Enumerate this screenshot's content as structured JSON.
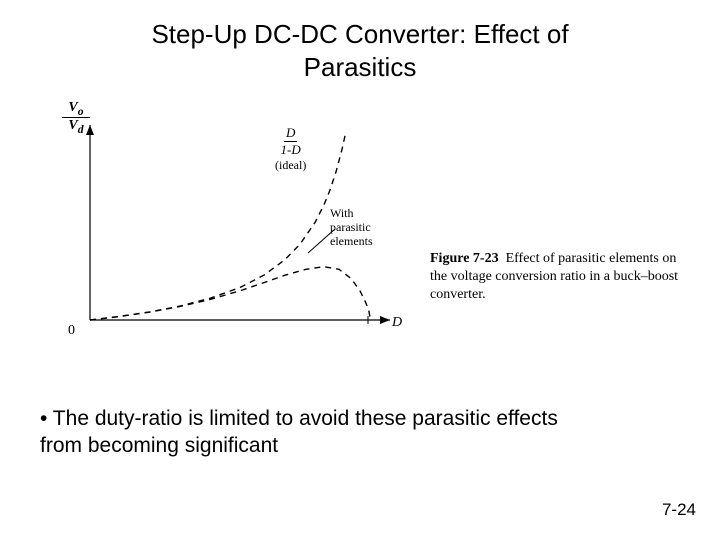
{
  "title_line1": "Step-Up DC-DC Converter: Effect of",
  "title_line2": "Parasitics",
  "chart": {
    "type": "line",
    "background_color": "#ffffff",
    "axis_color": "#000000",
    "line_width_axis": 1.2,
    "line_width_curve": 1.4,
    "dash_pattern": "6,5",
    "xlim": [
      0,
      1
    ],
    "ylim": [
      0,
      6
    ],
    "x_axis": {
      "origin_label": "0",
      "end_label": "D"
    },
    "y_axis": {
      "numerator": "V",
      "numerator_sub": "o",
      "denominator": "V",
      "denominator_sub": "d"
    },
    "curves": {
      "ideal": {
        "label_num": "D",
        "label_den": "1-D",
        "label_note": "(ideal)",
        "points": [
          [
            0.0,
            0.0
          ],
          [
            0.1,
            0.111
          ],
          [
            0.2,
            0.25
          ],
          [
            0.3,
            0.429
          ],
          [
            0.4,
            0.667
          ],
          [
            0.5,
            1.0
          ],
          [
            0.58,
            1.381
          ],
          [
            0.65,
            1.857
          ],
          [
            0.7,
            2.333
          ],
          [
            0.75,
            3.0
          ],
          [
            0.78,
            3.545
          ],
          [
            0.8,
            4.0
          ],
          [
            0.82,
            4.556
          ],
          [
            0.84,
            5.25
          ],
          [
            0.85,
            5.667
          ]
        ]
      },
      "parasitic": {
        "label_line1": "With",
        "label_line2": "parasitic",
        "label_line3": "elements",
        "points": [
          [
            0.0,
            0.0
          ],
          [
            0.1,
            0.11
          ],
          [
            0.2,
            0.245
          ],
          [
            0.3,
            0.415
          ],
          [
            0.4,
            0.63
          ],
          [
            0.5,
            0.9
          ],
          [
            0.58,
            1.15
          ],
          [
            0.65,
            1.38
          ],
          [
            0.72,
            1.56
          ],
          [
            0.78,
            1.64
          ],
          [
            0.83,
            1.56
          ],
          [
            0.87,
            1.28
          ],
          [
            0.9,
            0.9
          ],
          [
            0.92,
            0.52
          ],
          [
            0.93,
            0.26
          ],
          [
            0.935,
            0.0
          ]
        ]
      }
    }
  },
  "caption_bold": "Figure 7-23",
  "caption_rest": "Effect of parasitic elements on the voltage conversion ratio in a buck–boost converter.",
  "bullet": "• The duty-ratio is limited to avoid these parasitic effects from becoming significant",
  "page_number": "7-24"
}
